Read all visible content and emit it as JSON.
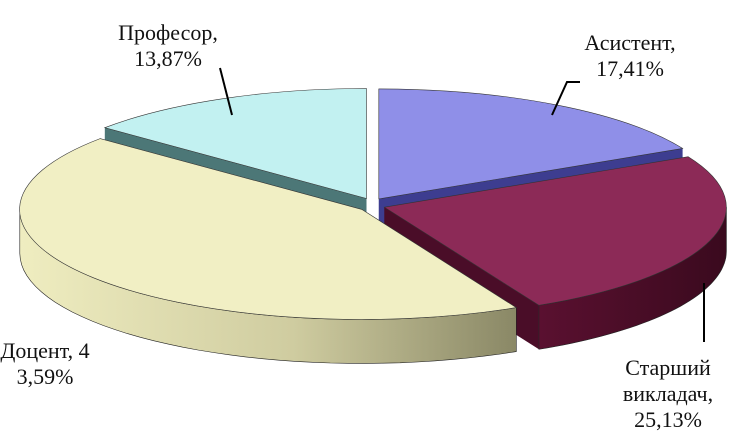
{
  "chart_data": {
    "type": "pie",
    "title": "",
    "start_angle_deg": 0,
    "slices": [
      {
        "name": "Асистент",
        "value": 17.41,
        "label_lines": [
          "Асистент,",
          "17,41%"
        ],
        "color": "#8F8FE8"
      },
      {
        "name": "Старший викладач",
        "value": 25.13,
        "label_lines": [
          "Старший",
          "викладач,",
          "25,13%"
        ],
        "color": "#8C2A57"
      },
      {
        "name": "Доцент",
        "value": 43.59,
        "label_lines": [
          "Доцент, 4",
          "3,59%"
        ],
        "color": "#F1EFC4"
      },
      {
        "name": "Професор",
        "value": 13.87,
        "label_lines": [
          "Професор,",
          "13,87%"
        ],
        "color": "#C2F1F1"
      }
    ]
  }
}
